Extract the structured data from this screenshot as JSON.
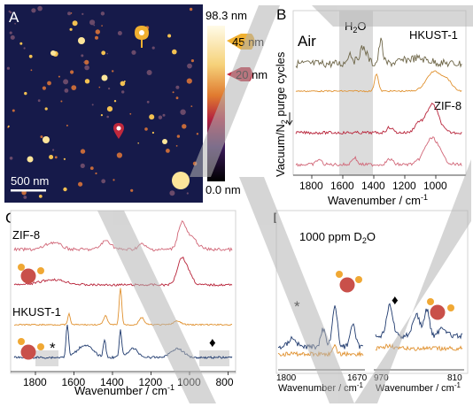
{
  "panels": {
    "A": {
      "letter": "A",
      "scale_bar": "500 nm",
      "colorbar": {
        "max": "98.3 nm",
        "min": "0.0 nm",
        "mark_high": "45 nm",
        "mark_low": "20 nm"
      },
      "colors": {
        "afm_bg": "#161a4a",
        "marker_high": "#f0b030",
        "marker_low": "#c0283c"
      }
    },
    "B": {
      "letter": "B",
      "condition": "Air",
      "band_label": "H",
      "band_sub": "2",
      "band_label2": "O",
      "label_top": "HKUST-1",
      "label_bottom": "ZIF-8",
      "ylabel_a": "Vacuum/N",
      "ylabel_sub": "2",
      "ylabel_b": " purge cycles",
      "xlabel": "Wavenumber / cm",
      "xlabel_sup": "-1",
      "ticks": [
        "1800",
        "1600",
        "1400",
        "1200",
        "1000"
      ]
    },
    "C": {
      "letter": "C",
      "label_top": "ZIF-8",
      "label_mid": "HKUST-1",
      "star": "*",
      "diamond": "♦",
      "xlabel": "Wavenumber / cm",
      "xlabel_sup": "-1",
      "ticks": [
        "1800",
        "1600",
        "1400",
        "1200",
        "1000",
        "800"
      ]
    },
    "D": {
      "letter": "D",
      "title_a": "1000 ppm D",
      "title_sub": "2",
      "title_b": "O",
      "star": "*",
      "diamond": "♦",
      "xlabel": "Wavenumber / cm",
      "xlabel_sup": "-1",
      "ticks_left": [
        "1800",
        "1670"
      ],
      "ticks_right": [
        "970",
        "810"
      ]
    }
  },
  "colors": {
    "hkust_dark": "#6e6648",
    "hkust_orange": "#e0912f",
    "zif_red": "#b8243a",
    "zif_pink": "#d16677",
    "navy": "#1f3a6e",
    "band": "#dcdcdc",
    "watermark": "#b4b4b4"
  }
}
